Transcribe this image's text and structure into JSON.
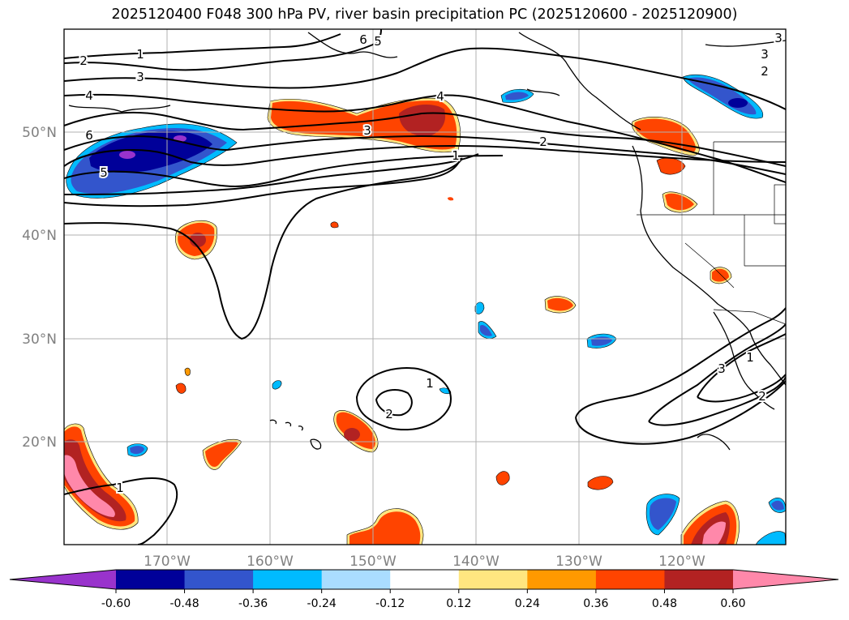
{
  "title": "2025120400 F048 300 hPa PV, river basin precipitation PC (2025120600 - 2025120900)",
  "map": {
    "lon_ticks": [
      "170°W",
      "160°W",
      "150°W",
      "140°W",
      "130°W",
      "120°W"
    ],
    "lat_ticks": [
      "50°N",
      "40°N",
      "30°N",
      "20°N"
    ]
  },
  "contour_labels": [
    "2",
    "1",
    "3",
    "4",
    "6",
    "5",
    "6",
    "5",
    "4",
    "3",
    "2",
    "1",
    "3",
    "2",
    "1",
    "2",
    "1",
    "3",
    "1",
    "2",
    "3"
  ],
  "colorbar": {
    "ticks": [
      "-0.60",
      "-0.48",
      "-0.36",
      "-0.24",
      "-0.12",
      "0.12",
      "0.24",
      "0.36",
      "0.48",
      "0.60"
    ],
    "colors": [
      "#9933cc",
      "#000099",
      "#3355cc",
      "#00bbff",
      "#aaddff",
      "#ffffff",
      "#ffe680",
      "#ff9900",
      "#ff4400",
      "#b22222",
      "#ff88aa"
    ]
  }
}
